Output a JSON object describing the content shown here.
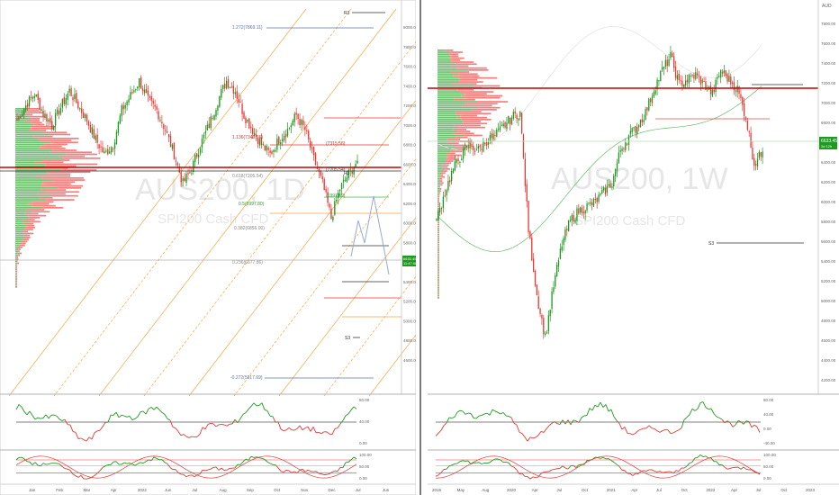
{
  "left": {
    "watermark_symbol": "AUS200, 1D",
    "watermark_name": "SPI200 Cash CFD",
    "fib_labels": [
      "1.272(7869.11)",
      "1.136(7349.55)",
      "(7315.58)",
      "0.618(7205.54)",
      "0.5(6997.80)",
      "0.382(6856.00)",
      "0.236(6677.86)",
      "-0.272(5917.69)"
    ],
    "s3_labels": [
      "R3",
      "S3",
      "R3",
      "S3"
    ],
    "small_labels": [
      "(6997.80)",
      "(7205.54)"
    ],
    "price_badge": "6633.45",
    "price_badge_sub": "11:47:08",
    "y_axis_labels": [
      "8000.00",
      "7800.00",
      "7600.00",
      "7400.00",
      "7200.00",
      "7000.00",
      "6800.00",
      "6600.00",
      "6400.00",
      "6200.00",
      "6000.00",
      "5800.00",
      "5600.00",
      "5400.00",
      "5200.00",
      "5000.00",
      "4800.00",
      "4600.00"
    ],
    "x_axis_labels": [
      "Jan",
      "Feb",
      "Mar",
      "Apr",
      "2022",
      "Jun",
      "Jul",
      "Aug",
      "Sep",
      "Oct",
      "Nov",
      "Dec",
      "Jul",
      "Jun"
    ],
    "rsi_axis": [
      "80.00",
      "40.00",
      "0.00"
    ],
    "stoch_axis": [
      "100.00",
      "50.00",
      "0.00"
    ]
  },
  "right": {
    "watermark_symbol": "AUS200, 1W",
    "watermark_name": "SPI200 Cash CFD",
    "currency": "AUD",
    "s3_label": "S3",
    "price_badge": "6633.45",
    "price_badge_sub": "3d 12h",
    "y_axis_labels": [
      "7800.00",
      "7600.00",
      "7400.00",
      "7200.00",
      "7000.00",
      "6800.00",
      "6600.00",
      "6400.00",
      "6200.00",
      "6000.00",
      "5800.00",
      "5600.00",
      "5400.00",
      "5200.00",
      "5000.00",
      "4800.00",
      "4600.00",
      "4400.00",
      "4200.00"
    ],
    "x_axis_labels": [
      "2019",
      "May",
      "Aug",
      "2020",
      "Apr",
      "Jul",
      "Oct",
      "2021",
      "Apr",
      "Jul",
      "Oct",
      "2022",
      "Apr",
      "Jul",
      "Oct",
      "2023"
    ],
    "rsi_axis": [
      "80.00",
      "40.00",
      "0.00",
      "-40.00"
    ],
    "stoch_axis": [
      "100.00",
      "50.00",
      "0.00"
    ]
  },
  "colors": {
    "up": "#1e9a1e",
    "down": "#e53935",
    "pivot": "#cc0000",
    "fib_orange": "#f5a742",
    "badge_green": "#26a69a"
  },
  "chart_data": [
    {
      "type": "line",
      "title": "AUS200, 1D",
      "subtitle": "SPI200 Cash CFD",
      "series": [
        {
          "values": [
            7050,
            7200,
            7320,
            7120,
            7000,
            7180,
            7350,
            7200,
            7050,
            6850,
            6700,
            6800,
            7150,
            7300,
            7450,
            7250,
            7150,
            6950,
            6700,
            6400,
            6550,
            6800,
            7000,
            7250,
            7450,
            7350,
            7100,
            6950,
            6800,
            6700,
            6850,
            6950,
            7100,
            6950,
            6650,
            6400,
            6050,
            6350,
            6500,
            6633
          ]
        }
      ],
      "ylim": [
        4600,
        8000
      ],
      "ylabel": ""
    },
    {
      "type": "line",
      "title": "AUS200, 1W",
      "subtitle": "SPI200 Cash CFD",
      "series": [
        {
          "values": [
            5900,
            6200,
            6450,
            6600,
            6700,
            6650,
            6750,
            6800,
            6900,
            7000,
            7050,
            5800,
            5100,
            4650,
            5200,
            5650,
            5900,
            6000,
            6050,
            6100,
            6200,
            6300,
            6650,
            6800,
            6900,
            7050,
            7300,
            7500,
            7650,
            7350,
            7400,
            7450,
            7350,
            7250,
            7500,
            7400,
            7300,
            7000,
            6500,
            6633
          ]
        }
      ],
      "ylim": [
        4200,
        8000
      ],
      "ylabel": ""
    }
  ]
}
